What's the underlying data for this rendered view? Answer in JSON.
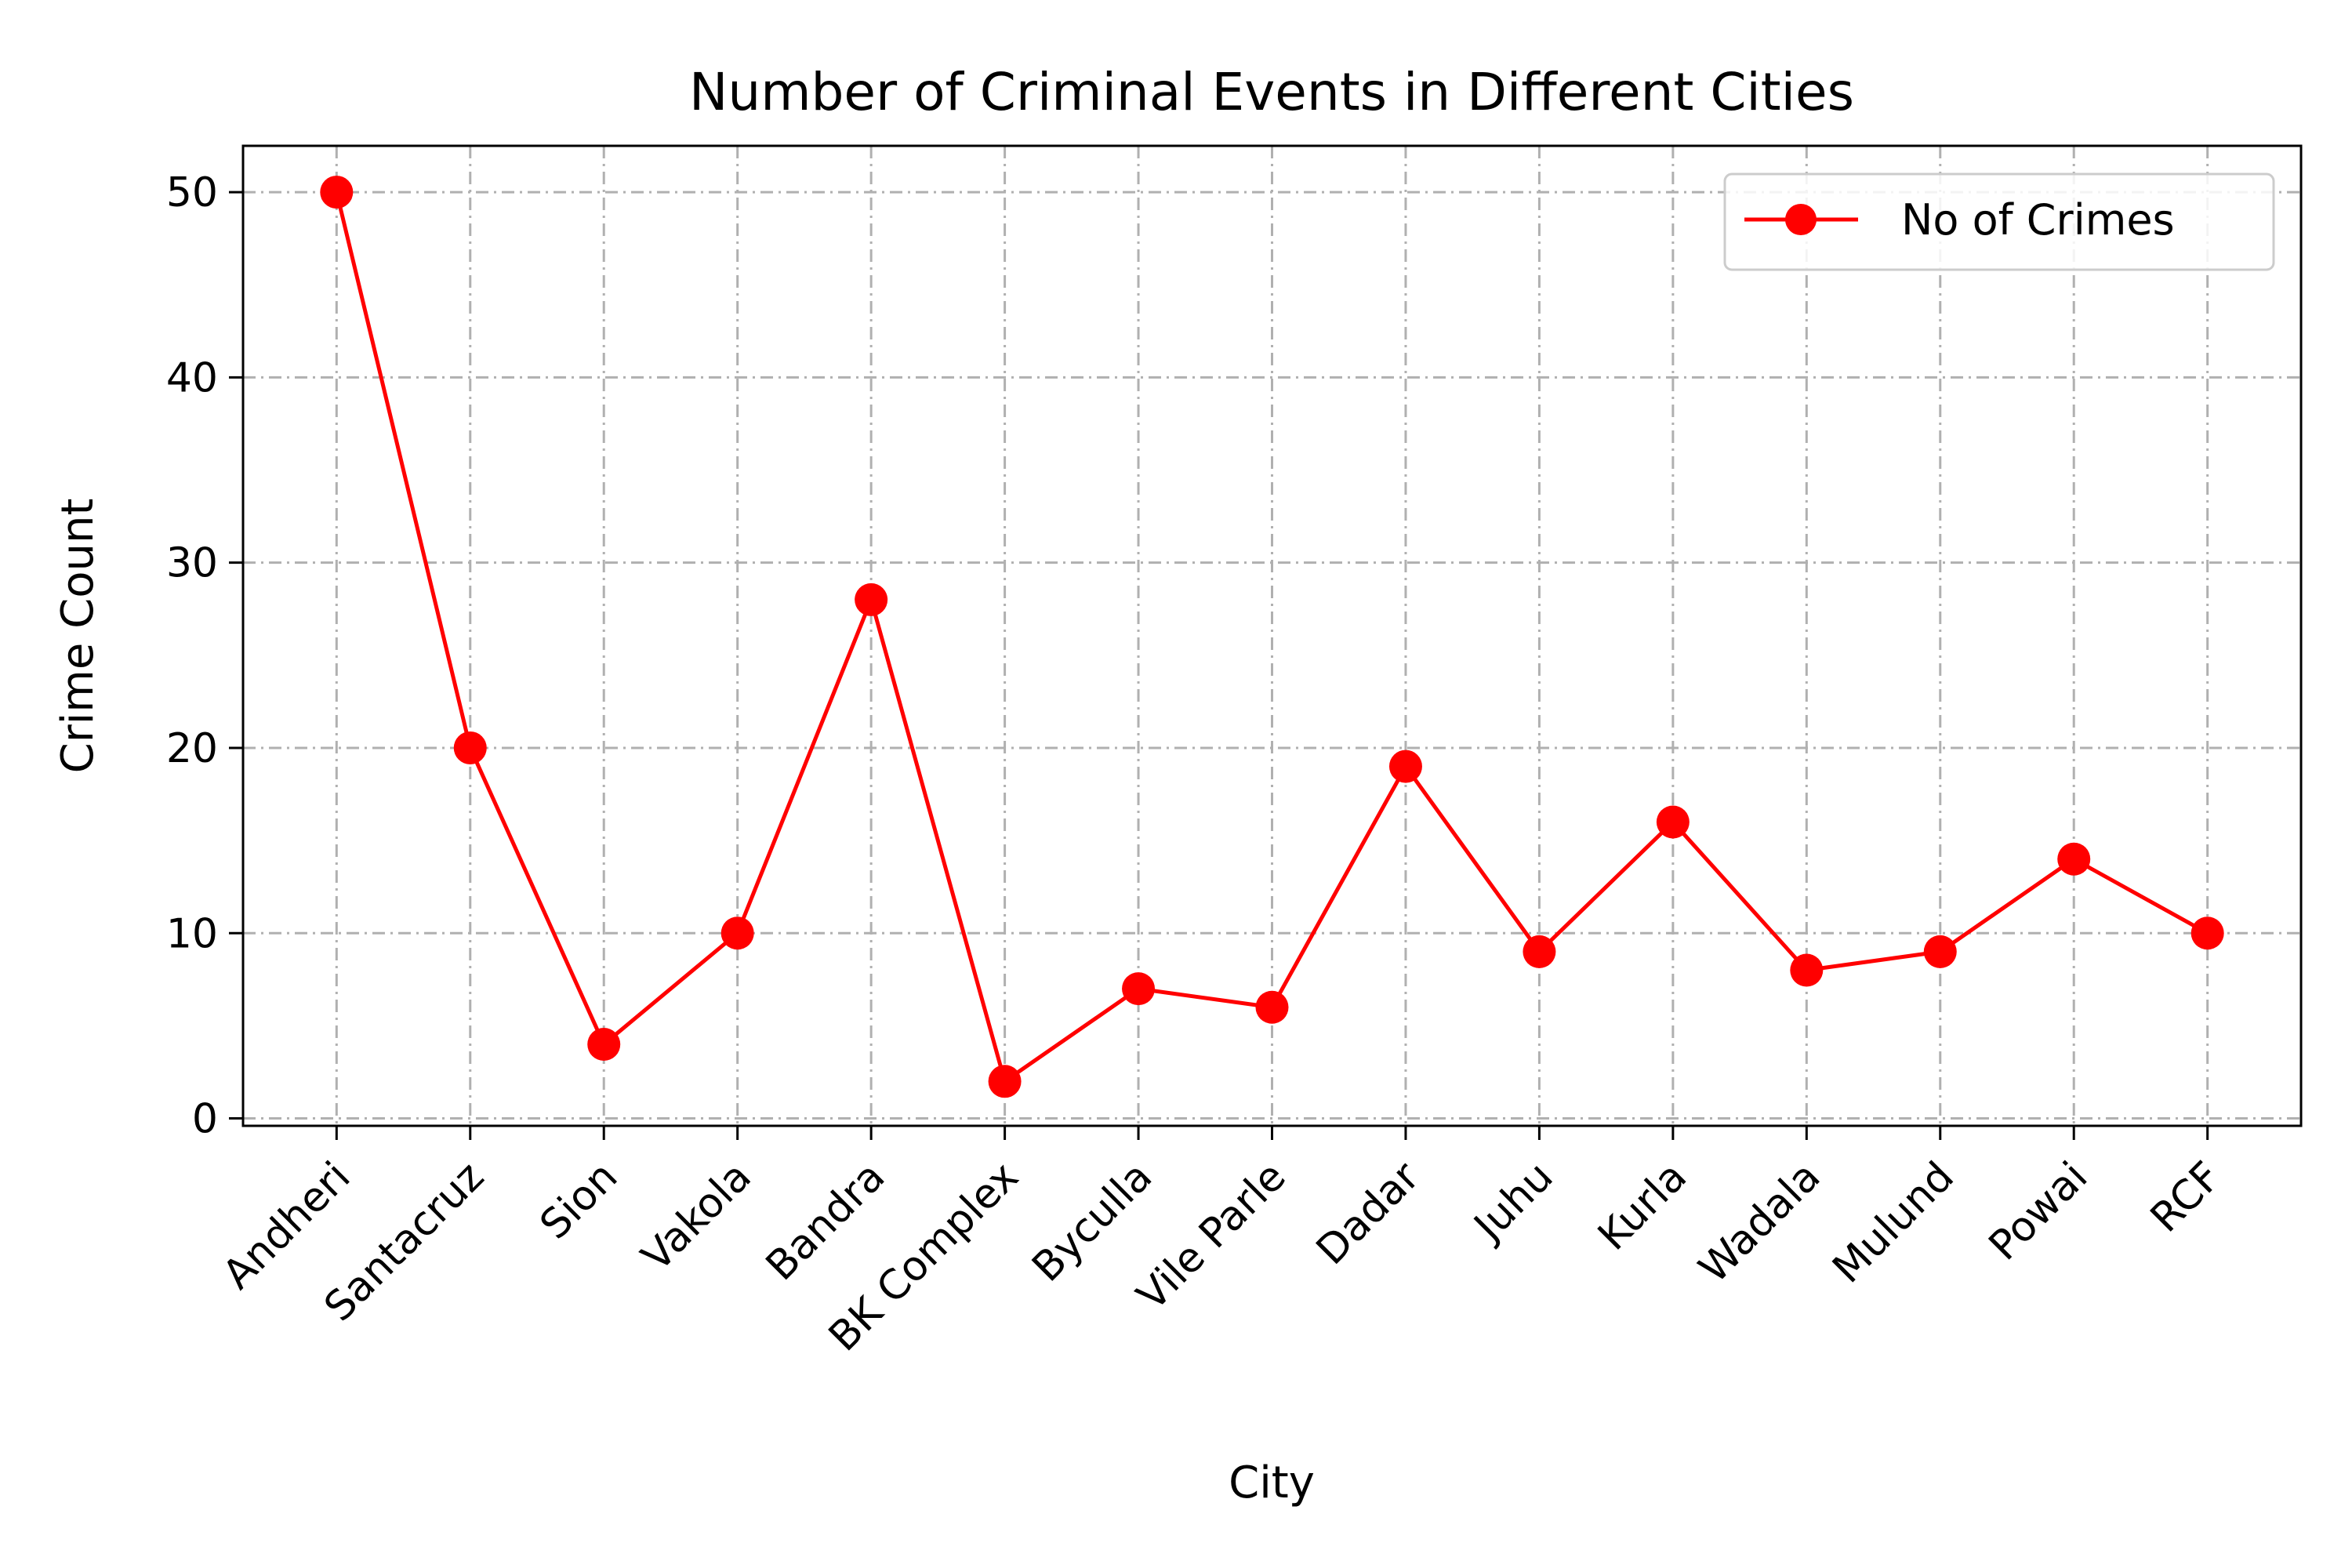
{
  "chart_data": {
    "type": "line",
    "title": "Number of Criminal Events in Different Cities",
    "xlabel": "City",
    "ylabel": "Crime Count",
    "categories": [
      "Andheri",
      "Santacruz",
      "Sion",
      "Vakola",
      "Bandra",
      "BK Complex",
      "Byculla",
      "Vile Parle",
      "Dadar",
      "Juhu",
      "Kurla",
      "Wadala",
      "Mulund",
      "Powai",
      "RCF"
    ],
    "series": [
      {
        "name": "No of Crimes",
        "values": [
          50,
          20,
          4,
          10,
          28,
          2,
          7,
          6,
          19,
          9,
          16,
          8,
          9,
          14,
          10
        ],
        "color": "#ff0000",
        "marker": "circle"
      }
    ],
    "ylim": [
      -0.4,
      52.5
    ],
    "yticks": [
      0,
      10,
      20,
      30,
      40,
      50
    ],
    "ytick_labels": [
      "0",
      "10",
      "20",
      "30",
      "40",
      "50"
    ],
    "grid": true,
    "legend_position": "top-right"
  }
}
